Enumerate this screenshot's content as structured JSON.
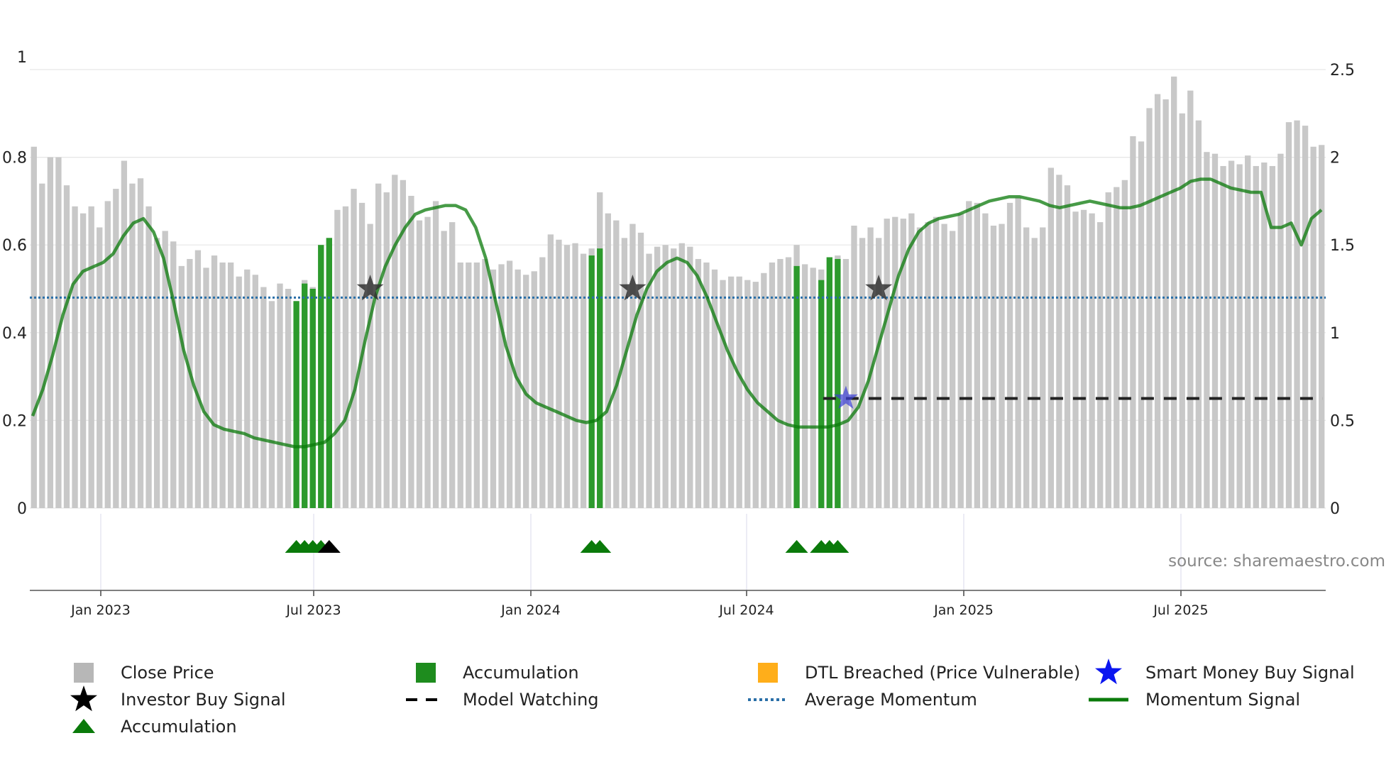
{
  "chart_data": {
    "type": "bar+line",
    "source": "source: sharemaestro.com",
    "x_tick_labels": [
      "Jan 2023",
      "Jul 2023",
      "Jan 2024",
      "Jul 2024",
      "Jan 2025",
      "Jul 2025"
    ],
    "left_axis": {
      "ylim": [
        0,
        1
      ],
      "ticks": [
        "0",
        "0.2",
        "0.4",
        "0.6",
        "0.8",
        "1"
      ]
    },
    "right_axis": {
      "ylim": [
        0,
        2.5
      ],
      "ticks": [
        "0",
        "0.5",
        "1",
        "1.5",
        "2",
        "2.5"
      ]
    },
    "average_momentum": 0.48,
    "model_watching_level": 0.25,
    "close_price_series": [
      2.06,
      1.85,
      2.0,
      2.0,
      1.84,
      1.72,
      1.68,
      1.72,
      1.6,
      1.75,
      1.82,
      1.98,
      1.85,
      1.88,
      1.72,
      1.54,
      1.58,
      1.52,
      1.38,
      1.42,
      1.47,
      1.37,
      1.44,
      1.4,
      1.4,
      1.32,
      1.36,
      1.33,
      1.26,
      1.18,
      1.28,
      1.25,
      1.18,
      1.3,
      1.26,
      1.5,
      1.54,
      1.7,
      1.72,
      1.82,
      1.74,
      1.62,
      1.85,
      1.8,
      1.9,
      1.87,
      1.78,
      1.64,
      1.66,
      1.75,
      1.58,
      1.63,
      1.4,
      1.4,
      1.4,
      1.42,
      1.36,
      1.39,
      1.41,
      1.36,
      1.33,
      1.35,
      1.43,
      1.56,
      1.53,
      1.5,
      1.51,
      1.45,
      1.48,
      1.8,
      1.68,
      1.64,
      1.54,
      1.62,
      1.57,
      1.45,
      1.49,
      1.5,
      1.48,
      1.51,
      1.49,
      1.42,
      1.4,
      1.36,
      1.3,
      1.32,
      1.32,
      1.3,
      1.29,
      1.34,
      1.4,
      1.42,
      1.43,
      1.5,
      1.39,
      1.37,
      1.36,
      1.3,
      1.44,
      1.42,
      1.61,
      1.54,
      1.6,
      1.54,
      1.65,
      1.66,
      1.65,
      1.68,
      1.6,
      1.63,
      1.66,
      1.62,
      1.58,
      1.68,
      1.75,
      1.74,
      1.68,
      1.61,
      1.62,
      1.74,
      1.77,
      1.6,
      1.54,
      1.6,
      1.94,
      1.9,
      1.84,
      1.69,
      1.7,
      1.68,
      1.63,
      1.8,
      1.83,
      1.87,
      2.12,
      2.09,
      2.28,
      2.36,
      2.33,
      2.46,
      2.25,
      2.38,
      2.21,
      2.03,
      2.02,
      1.95,
      1.98,
      1.96,
      2.01,
      1.95,
      1.97,
      1.95,
      2.02,
      2.2,
      2.21,
      2.18,
      2.06,
      2.07
    ],
    "momentum_series": [
      0.21,
      0.27,
      0.35,
      0.44,
      0.51,
      0.54,
      0.55,
      0.56,
      0.58,
      0.62,
      0.65,
      0.66,
      0.63,
      0.57,
      0.47,
      0.36,
      0.28,
      0.22,
      0.19,
      0.18,
      0.175,
      0.17,
      0.16,
      0.155,
      0.15,
      0.145,
      0.14,
      0.14,
      0.145,
      0.15,
      0.17,
      0.2,
      0.27,
      0.38,
      0.48,
      0.55,
      0.6,
      0.64,
      0.67,
      0.68,
      0.685,
      0.69,
      0.69,
      0.68,
      0.64,
      0.57,
      0.47,
      0.37,
      0.3,
      0.26,
      0.24,
      0.23,
      0.22,
      0.21,
      0.2,
      0.195,
      0.2,
      0.22,
      0.28,
      0.36,
      0.44,
      0.5,
      0.54,
      0.56,
      0.57,
      0.56,
      0.53,
      0.48,
      0.42,
      0.36,
      0.31,
      0.27,
      0.24,
      0.22,
      0.2,
      0.19,
      0.185,
      0.185,
      0.185,
      0.185,
      0.19,
      0.2,
      0.23,
      0.29,
      0.37,
      0.45,
      0.53,
      0.59,
      0.63,
      0.65,
      0.66,
      0.665,
      0.67,
      0.68,
      0.69,
      0.7,
      0.705,
      0.71,
      0.71,
      0.705,
      0.7,
      0.69,
      0.685,
      0.69,
      0.695,
      0.7,
      0.695,
      0.69,
      0.685,
      0.685,
      0.69,
      0.7,
      0.71,
      0.72,
      0.73,
      0.745,
      0.75,
      0.75,
      0.74,
      0.73,
      0.725,
      0.72,
      0.72,
      0.64,
      0.64,
      0.65,
      0.6,
      0.66,
      0.68
    ],
    "accumulation_bars": [
      {
        "index": 32,
        "value": 1.18
      },
      {
        "index": 33,
        "value": 1.28
      },
      {
        "index": 34,
        "value": 1.25
      },
      {
        "index": 35,
        "value": 1.5
      },
      {
        "index": 36,
        "value": 1.54
      },
      {
        "index": 68,
        "value": 1.44
      },
      {
        "index": 69,
        "value": 1.48
      },
      {
        "index": 93,
        "value": 1.38
      },
      {
        "index": 96,
        "value": 1.3
      },
      {
        "index": 97,
        "value": 1.43
      },
      {
        "index": 98,
        "value": 1.42
      }
    ],
    "accumulation_markers": [
      32,
      33,
      34,
      35,
      68,
      69,
      93,
      96,
      97,
      98
    ],
    "investor_buy_signals": [
      {
        "index": 36,
        "kind": "triangle"
      },
      {
        "index": 41,
        "kind": "star",
        "value": 0.5
      },
      {
        "index": 73,
        "kind": "star",
        "value": 0.5
      },
      {
        "index": 103,
        "kind": "star",
        "value": 0.5
      }
    ],
    "smart_money_buy_signals": [
      {
        "index": 99,
        "value": 0.25
      }
    ]
  },
  "legend": [
    {
      "label": "Close Price",
      "swatch": "grey-square-icon",
      "color": "#b7b7b7"
    },
    {
      "label": "Accumulation",
      "swatch": "green-square-icon",
      "color": "#1e8c1e"
    },
    {
      "label": "DTL Breached (Price Vulnerable)",
      "swatch": "orange-square-icon",
      "color": "#ffae1a"
    },
    {
      "label": "Smart Money Buy Signal",
      "swatch": "blue-star-icon",
      "color": "#0b16f0"
    },
    {
      "label": "Investor Buy Signal",
      "swatch": "black-star-icon",
      "color": "#000000"
    },
    {
      "label": "Model Watching",
      "swatch": "dashed-line-icon",
      "color": "#000000"
    },
    {
      "label": "Average Momentum",
      "swatch": "dotted-line-icon",
      "color": "#2a6fa8"
    },
    {
      "label": "Momentum Signal",
      "swatch": "green-line-icon",
      "color": "#0a7a0a"
    },
    {
      "label": "Accumulation",
      "swatch": "green-triangle-icon",
      "color": "#0a7a0a"
    }
  ]
}
